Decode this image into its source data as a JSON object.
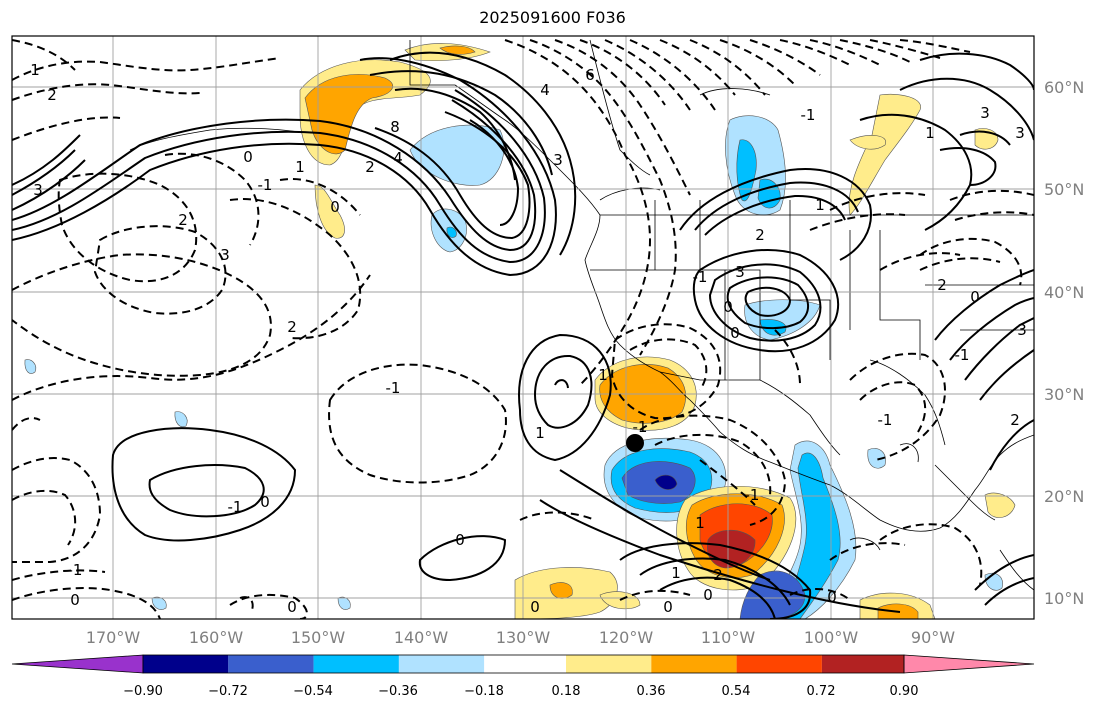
{
  "title": "2025091600 F036",
  "map": {
    "longitude_labels": [
      "170°W",
      "160°W",
      "150°W",
      "140°W",
      "130°W",
      "120°W",
      "110°W",
      "100°W",
      "90°W"
    ],
    "latitude_labels": [
      "60°N",
      "50°N",
      "40°N",
      "30°N",
      "20°N",
      "10°N"
    ],
    "marker": {
      "lon": -119,
      "lat": 25,
      "color": "#000000"
    },
    "contour_labels": [
      "2",
      "1",
      "-1",
      "0",
      "3",
      "2",
      "0",
      "-1",
      "1",
      "-1",
      "0",
      "0",
      "-1",
      "3",
      "8",
      "4",
      "2",
      "0",
      "1",
      "2",
      "3",
      "0",
      "1",
      "1",
      "-1",
      "2",
      "-1",
      "0",
      "1",
      "0",
      "2",
      "3",
      "1",
      "-1",
      "3",
      "1",
      "0",
      "3",
      "-1",
      "2",
      "0",
      "6",
      "3",
      "4",
      "2",
      "-1",
      "0",
      "0",
      "-1",
      "0"
    ]
  },
  "colorbar": {
    "tick_labels": [
      "−0.90",
      "−0.72",
      "−0.54",
      "−0.36",
      "−0.18",
      "0.18",
      "0.36",
      "0.54",
      "0.72",
      "0.90"
    ],
    "colors": [
      "#9932cc",
      "#00008b",
      "#3a5fcd",
      "#00bfff",
      "#b0e2ff",
      "#ffffff",
      "#ffec8b",
      "#ffa500",
      "#ff4500",
      "#b22222",
      "#ff88aa"
    ]
  }
}
